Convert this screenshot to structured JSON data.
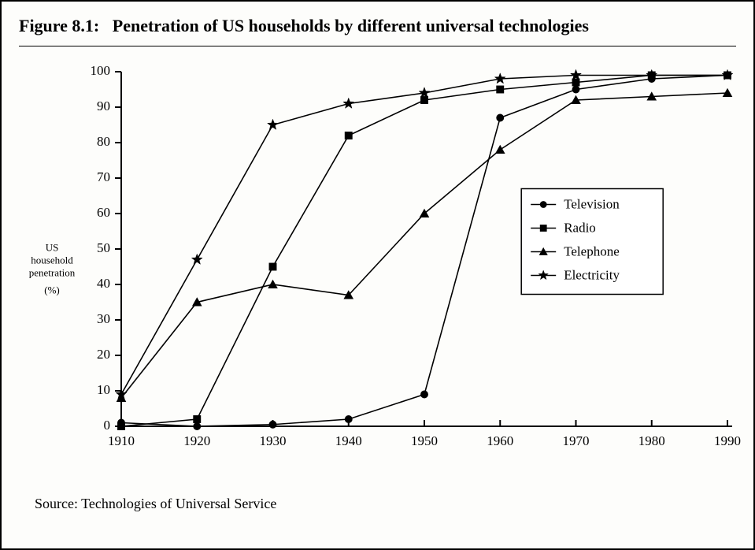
{
  "figure": {
    "label": "Figure 8.1:",
    "title": "Penetration of US households by different universal technologies",
    "source": "Source: Technologies of Universal Service",
    "type": "line",
    "background_color": "#fdfdfb",
    "line_color": "#000000",
    "axis_color": "#000000",
    "line_width": 1.6,
    "title_fontsize": 22,
    "tick_fontsize": 17,
    "ylabel_fontsize": 13,
    "legend_fontsize": 17,
    "ylabel_line1": "US",
    "ylabel_line2": "household",
    "ylabel_line3": "penetration",
    "ylabel_line4": "(%)",
    "x_categories": [
      "1910",
      "1920",
      "1930",
      "1940",
      "1950",
      "1960",
      "1970",
      "1980",
      "1990"
    ],
    "ylim": [
      0,
      100
    ],
    "ytick_step": 10,
    "yticks": [
      0,
      10,
      20,
      30,
      40,
      50,
      60,
      70,
      80,
      90,
      100
    ],
    "legend_position": "right-middle",
    "series": [
      {
        "name": "Television",
        "marker": "circle",
        "values": [
          1,
          0,
          0.5,
          2,
          9,
          87,
          95,
          98,
          99
        ]
      },
      {
        "name": "Radio",
        "marker": "square",
        "values": [
          0,
          2,
          45,
          82,
          92,
          95,
          97,
          99,
          99
        ]
      },
      {
        "name": "Telephone",
        "marker": "triangle",
        "values": [
          8,
          35,
          40,
          37,
          60,
          78,
          92,
          93,
          94
        ]
      },
      {
        "name": "Electricity",
        "marker": "star",
        "values": [
          9,
          47,
          85,
          91,
          94,
          98,
          99,
          99,
          99
        ]
      }
    ]
  }
}
